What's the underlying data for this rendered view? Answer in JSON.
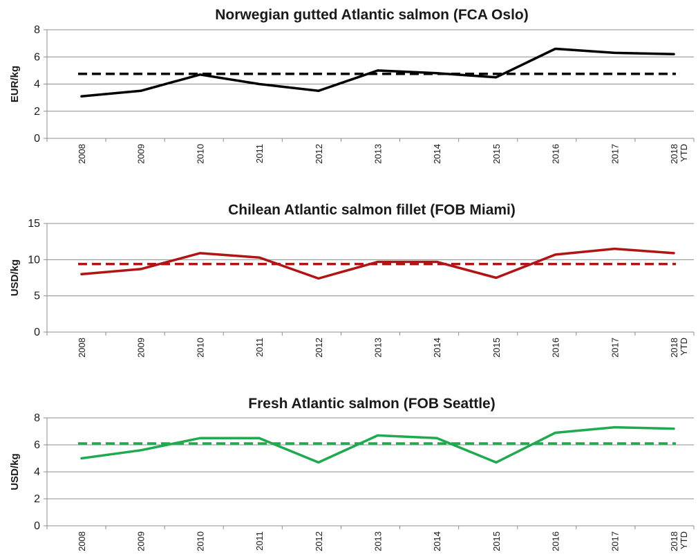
{
  "chart_data": [
    {
      "type": "line",
      "title": "Norwegian gutted Atlantic salmon (FCA Oslo)",
      "ylabel": "EUR/kg",
      "xlabel": "",
      "categories": [
        "2008",
        "2009",
        "2010",
        "2011",
        "2012",
        "2013",
        "2014",
        "2015",
        "2016",
        "2017",
        "2018"
      ],
      "category_suffix": "YTD",
      "ylim": [
        0,
        8
      ],
      "yticks": [
        0,
        2,
        4,
        6,
        8
      ],
      "grid": true,
      "color": "#000000",
      "series": [
        {
          "values": [
            3.1,
            3.5,
            4.7,
            4.0,
            3.5,
            5.0,
            4.8,
            4.5,
            6.6,
            6.3,
            6.2
          ]
        }
      ],
      "reference_line": {
        "value": 4.75,
        "style": "dashed"
      }
    },
    {
      "type": "line",
      "title": "Chilean Atlantic salmon fillet (FOB Miami)",
      "ylabel": "USD/kg",
      "xlabel": "",
      "categories": [
        "2008",
        "2009",
        "2010",
        "2011",
        "2012",
        "2013",
        "2014",
        "2015",
        "2016",
        "2017",
        "2018"
      ],
      "category_suffix": "YTD",
      "ylim": [
        0,
        15
      ],
      "yticks": [
        0,
        5,
        10,
        15
      ],
      "grid": true,
      "color": "#b01414",
      "series": [
        {
          "values": [
            8.0,
            8.7,
            10.9,
            10.3,
            7.4,
            9.7,
            9.7,
            7.5,
            10.7,
            11.5,
            10.9
          ]
        }
      ],
      "reference_line": {
        "value": 9.4,
        "style": "dashed"
      }
    },
    {
      "type": "line",
      "title": "Fresh Atlantic salmon (FOB Seattle)",
      "ylabel": "USD/kg",
      "xlabel": "",
      "categories": [
        "2008",
        "2009",
        "2010",
        "2011",
        "2012",
        "2013",
        "2014",
        "2015",
        "2016",
        "2017",
        "2018"
      ],
      "category_suffix": "YTD",
      "ylim": [
        0,
        8
      ],
      "yticks": [
        0,
        2,
        4,
        6,
        8
      ],
      "grid": true,
      "color": "#1faa4f",
      "series": [
        {
          "values": [
            5.0,
            5.6,
            6.5,
            6.5,
            4.7,
            6.7,
            6.5,
            4.7,
            6.9,
            7.3,
            7.2
          ]
        }
      ],
      "reference_line": {
        "value": 6.1,
        "style": "dashed"
      }
    }
  ]
}
